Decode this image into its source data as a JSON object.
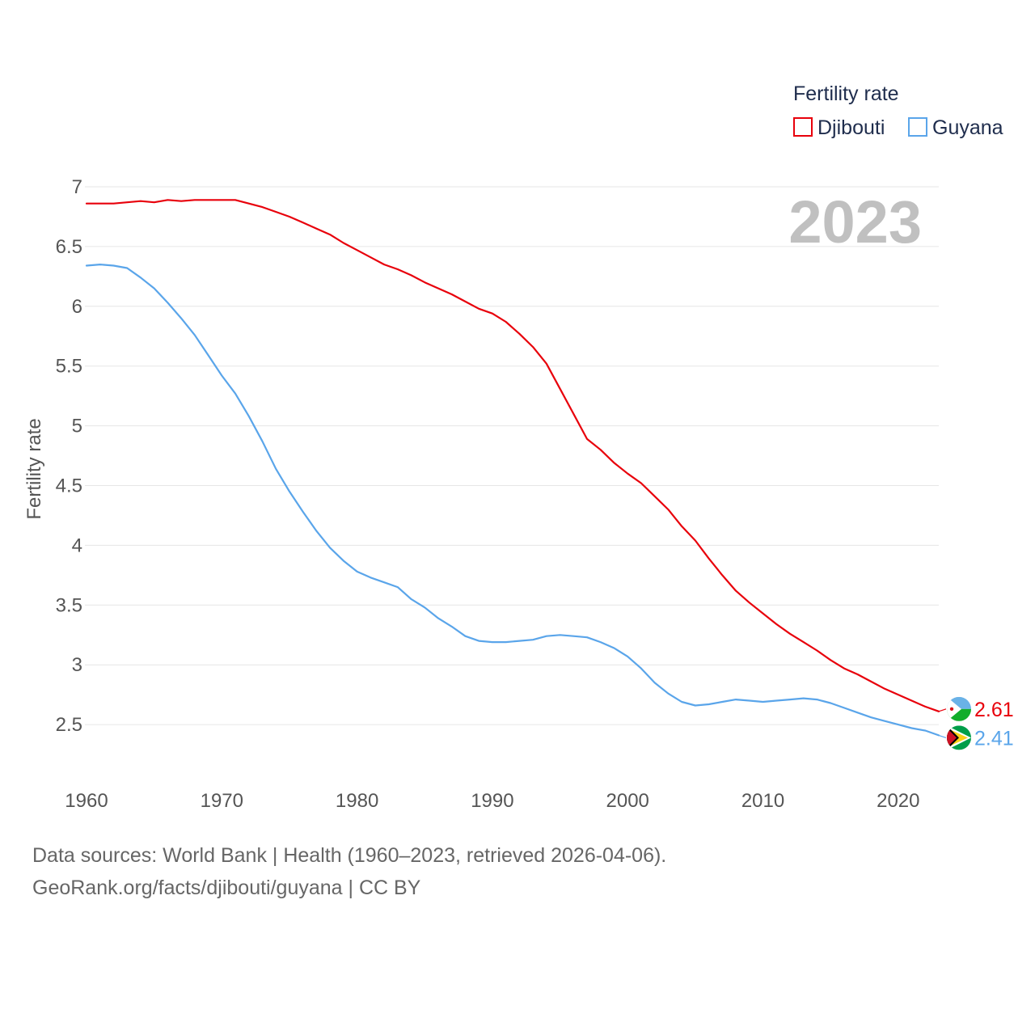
{
  "chart_data": {
    "type": "line",
    "title": "",
    "xlabel": "",
    "ylabel": "Fertility rate",
    "xlim": [
      1960,
      2023
    ],
    "ylim": [
      2,
      7
    ],
    "x_ticks": [
      1960,
      1970,
      1980,
      1990,
      2000,
      2010,
      2020
    ],
    "y_ticks": [
      2.5,
      3,
      3.5,
      4,
      4.5,
      5,
      5.5,
      6,
      6.5,
      7
    ],
    "y_tick_labels": [
      "2.5",
      "3",
      "3.5",
      "4",
      "4.5",
      "5",
      "5.5",
      "6",
      "6.5",
      "7"
    ],
    "grid": true,
    "legend": {
      "title": "Fertility rate",
      "position": "top-right"
    },
    "current_year_label": "2023",
    "x": [
      1960,
      1961,
      1962,
      1963,
      1964,
      1965,
      1966,
      1967,
      1968,
      1969,
      1970,
      1971,
      1972,
      1973,
      1974,
      1975,
      1976,
      1977,
      1978,
      1979,
      1980,
      1981,
      1982,
      1983,
      1984,
      1985,
      1986,
      1987,
      1988,
      1989,
      1990,
      1991,
      1992,
      1993,
      1994,
      1995,
      1996,
      1997,
      1998,
      1999,
      2000,
      2001,
      2002,
      2003,
      2004,
      2005,
      2006,
      2007,
      2008,
      2009,
      2010,
      2011,
      2012,
      2013,
      2014,
      2015,
      2016,
      2017,
      2018,
      2019,
      2020,
      2021,
      2022,
      2023
    ],
    "series": [
      {
        "name": "Djibouti",
        "color": "#e8000b",
        "end_label": "2.61",
        "flag_icon": "djibouti-flag-icon",
        "values": [
          6.86,
          6.86,
          6.86,
          6.87,
          6.88,
          6.87,
          6.89,
          6.88,
          6.89,
          6.89,
          6.89,
          6.89,
          6.86,
          6.83,
          6.79,
          6.75,
          6.7,
          6.65,
          6.6,
          6.53,
          6.47,
          6.41,
          6.35,
          6.31,
          6.26,
          6.2,
          6.15,
          6.1,
          6.04,
          5.98,
          5.94,
          5.87,
          5.77,
          5.66,
          5.52,
          5.31,
          5.1,
          4.89,
          4.8,
          4.69,
          4.6,
          4.52,
          4.41,
          4.3,
          4.16,
          4.04,
          3.89,
          3.75,
          3.62,
          3.52,
          3.43,
          3.34,
          3.26,
          3.19,
          3.12,
          3.04,
          2.97,
          2.92,
          2.86,
          2.8,
          2.75,
          2.7,
          2.65,
          2.61
        ]
      },
      {
        "name": "Guyana",
        "color": "#5aa5ea",
        "end_label": "2.41",
        "flag_icon": "guyana-flag-icon",
        "values": [
          6.34,
          6.35,
          6.34,
          6.32,
          6.24,
          6.15,
          6.03,
          5.9,
          5.76,
          5.59,
          5.42,
          5.27,
          5.08,
          4.87,
          4.64,
          4.45,
          4.28,
          4.12,
          3.98,
          3.87,
          3.78,
          3.73,
          3.69,
          3.65,
          3.55,
          3.48,
          3.39,
          3.32,
          3.24,
          3.2,
          3.19,
          3.19,
          3.2,
          3.21,
          3.24,
          3.25,
          3.24,
          3.23,
          3.19,
          3.14,
          3.07,
          2.97,
          2.85,
          2.76,
          2.69,
          2.66,
          2.67,
          2.69,
          2.71,
          2.7,
          2.69,
          2.7,
          2.71,
          2.72,
          2.71,
          2.68,
          2.64,
          2.6,
          2.56,
          2.53,
          2.5,
          2.47,
          2.45,
          2.41
        ]
      }
    ]
  },
  "footer": {
    "source_line": "Data sources: World Bank | Health (1960–2023, retrieved 2026-04-06).",
    "credit_line": "GeoRank.org/facts/djibouti/guyana | CC BY"
  }
}
